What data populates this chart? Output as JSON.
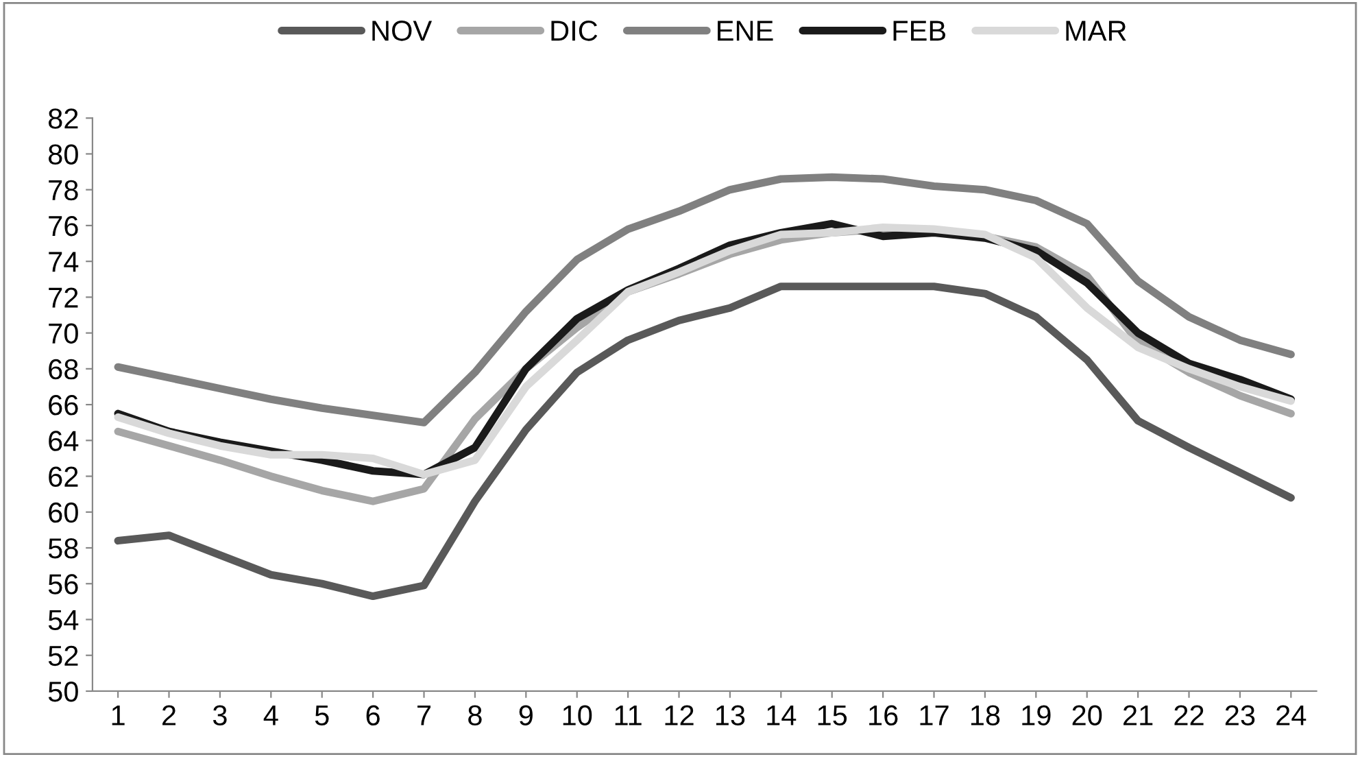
{
  "chart_data": {
    "type": "line",
    "categories": [
      "1",
      "2",
      "3",
      "4",
      "5",
      "6",
      "7",
      "8",
      "9",
      "10",
      "11",
      "12",
      "13",
      "14",
      "15",
      "16",
      "17",
      "18",
      "19",
      "20",
      "21",
      "22",
      "23",
      "24"
    ],
    "series": [
      {
        "name": "NOV",
        "color": "#595959",
        "values": [
          58.4,
          58.7,
          57.6,
          56.5,
          56.0,
          55.3,
          55.9,
          60.6,
          64.6,
          67.8,
          69.6,
          70.7,
          71.4,
          72.6,
          72.6,
          72.6,
          72.6,
          72.2,
          70.9,
          68.5,
          65.1,
          63.6,
          62.2,
          60.8
        ]
      },
      {
        "name": "DIC",
        "color": "#a6a6a6",
        "values": [
          64.5,
          63.7,
          62.9,
          62.0,
          61.2,
          60.6,
          61.3,
          65.2,
          68.0,
          70.3,
          72.3,
          73.3,
          74.4,
          75.2,
          75.6,
          75.8,
          75.7,
          75.4,
          74.8,
          73.2,
          69.5,
          67.8,
          66.5,
          65.5
        ]
      },
      {
        "name": "ENE",
        "color": "#808080",
        "values": [
          68.1,
          67.5,
          66.9,
          66.3,
          65.8,
          65.4,
          65.0,
          67.8,
          71.2,
          74.1,
          75.8,
          76.8,
          78.0,
          78.6,
          78.7,
          78.6,
          78.2,
          78.0,
          77.4,
          76.1,
          72.9,
          70.9,
          69.6,
          68.8
        ]
      },
      {
        "name": "FEB",
        "color": "#1a1a1a",
        "values": [
          65.5,
          64.5,
          63.9,
          63.4,
          62.9,
          62.3,
          62.1,
          63.6,
          68.0,
          70.8,
          72.4,
          73.6,
          74.9,
          75.6,
          76.1,
          75.4,
          75.6,
          75.3,
          74.6,
          72.8,
          70.0,
          68.3,
          67.4,
          66.3
        ]
      },
      {
        "name": "MAR",
        "color": "#d9d9d9",
        "values": [
          65.3,
          64.4,
          63.7,
          63.2,
          63.2,
          63.0,
          62.1,
          62.9,
          67.0,
          69.6,
          72.3,
          73.4,
          74.6,
          75.5,
          75.6,
          75.9,
          75.8,
          75.5,
          74.2,
          71.4,
          69.2,
          68.0,
          67.0,
          66.2
        ]
      }
    ],
    "ylim": [
      50,
      82
    ],
    "yticks": [
      50,
      52,
      54,
      56,
      58,
      60,
      62,
      64,
      66,
      68,
      70,
      72,
      74,
      76,
      78,
      80,
      82
    ],
    "grid": false,
    "legend": "top",
    "marker": "none",
    "line_style": "solid"
  }
}
